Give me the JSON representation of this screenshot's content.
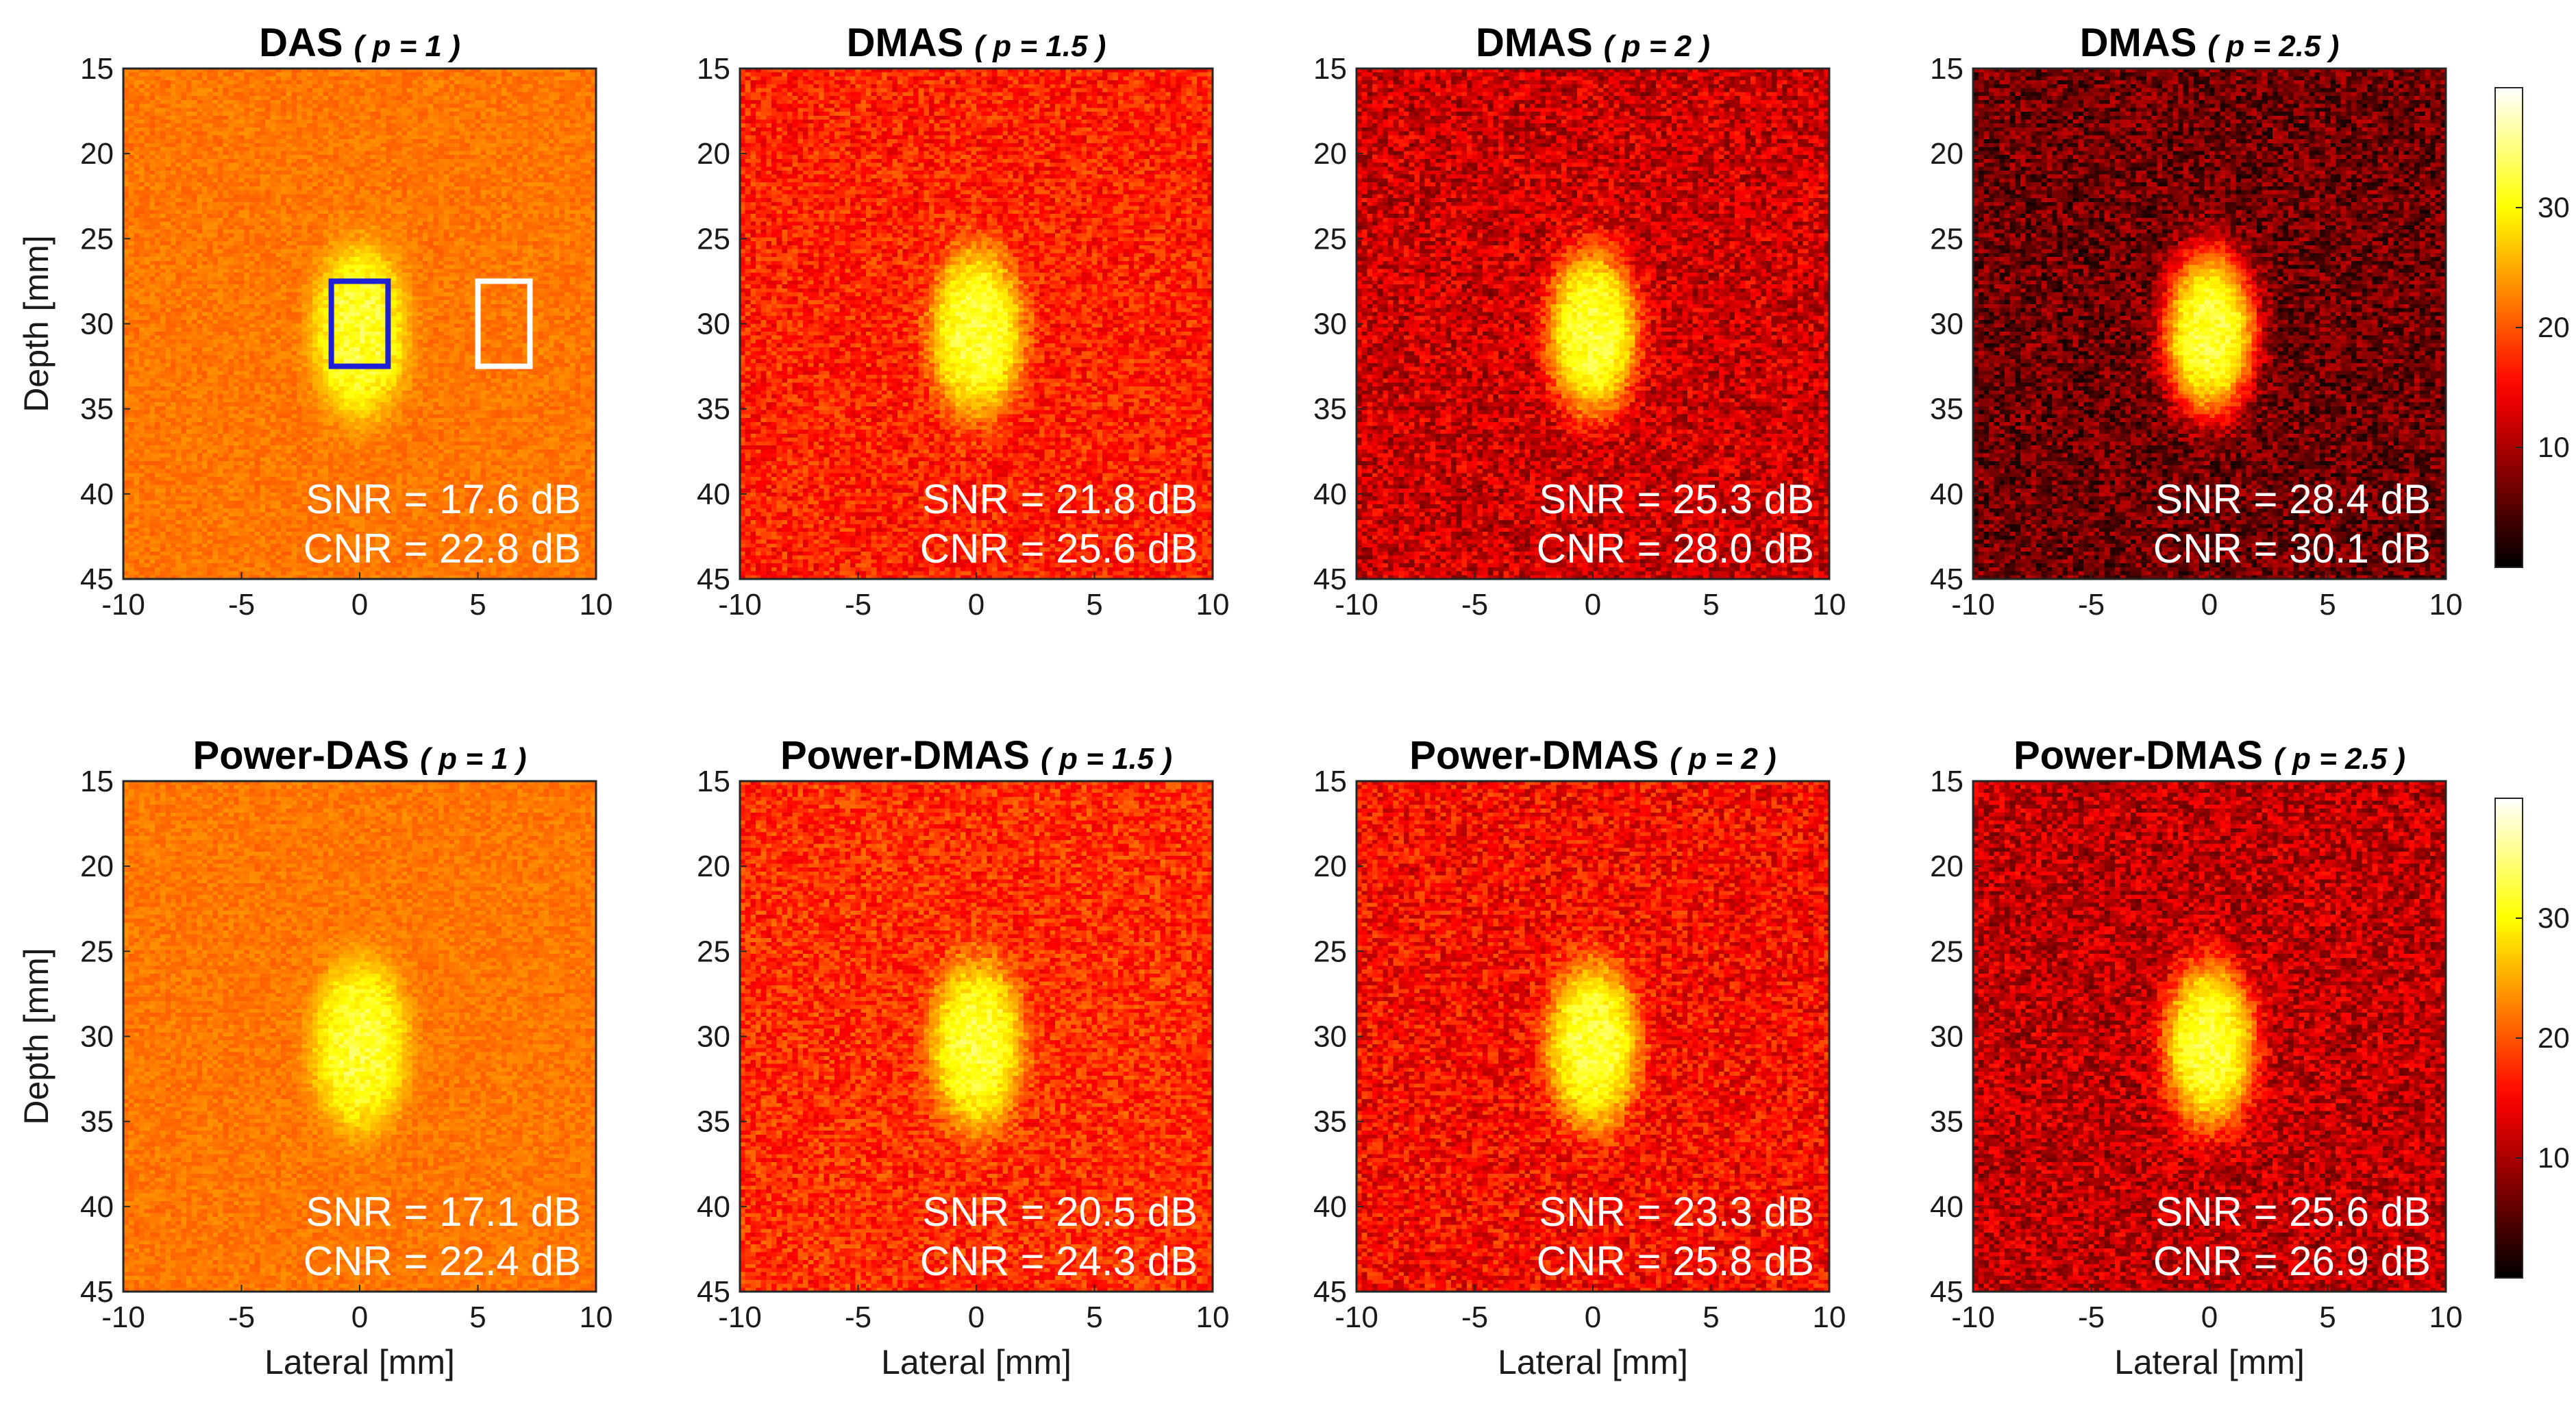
{
  "figure": {
    "colormap": "hot",
    "colors": {
      "background": "#ffffff",
      "axis": "#262626",
      "metric_text": "#ffffff",
      "roi_signal": "#1f1fd6",
      "roi_background": "#ffffff"
    }
  },
  "chart_data": [
    {
      "type": "heatmap",
      "title": "DAS",
      "param": "( p = 1 )",
      "xlabel": "",
      "ylabel": "Depth [mm]",
      "xlim": [
        -10,
        10
      ],
      "ylim": [
        15,
        45
      ],
      "xticks": [
        "-10",
        "-5",
        "0",
        "5",
        "10"
      ],
      "yticks": [
        "15",
        "20",
        "25",
        "30",
        "35",
        "40",
        "45"
      ],
      "background_level": 0.55,
      "noise": 0.04,
      "inclusion": {
        "center_x": 0,
        "center_y": 30.5,
        "radius_x": 2.0,
        "radius_y": 5.0
      },
      "snr": "SNR = 17.6 dB",
      "cnr": "CNR = 22.8 dB",
      "rois": [
        {
          "name": "signal",
          "color": "#1f1fd6",
          "x": [
            -1.2,
            1.2
          ],
          "y": [
            27.5,
            32.5
          ]
        },
        {
          "name": "background",
          "color": "#ffffff",
          "x": [
            5.0,
            7.2
          ],
          "y": [
            27.5,
            32.5
          ]
        }
      ]
    },
    {
      "type": "heatmap",
      "title": "DMAS",
      "param": "( p = 1.5 )",
      "xlabel": "",
      "ylabel": "",
      "xlim": [
        -10,
        10
      ],
      "ylim": [
        15,
        45
      ],
      "xticks": [
        "-10",
        "-5",
        "0",
        "5",
        "10"
      ],
      "yticks": [
        "15",
        "20",
        "25",
        "30",
        "35",
        "40",
        "45"
      ],
      "background_level": 0.42,
      "noise": 0.1,
      "inclusion": {
        "center_x": 0,
        "center_y": 30.5,
        "radius_x": 2.0,
        "radius_y": 5.0
      },
      "snr": "SNR = 21.8 dB",
      "cnr": "CNR = 25.6 dB",
      "rois": []
    },
    {
      "type": "heatmap",
      "title": "DMAS",
      "param": "( p = 2 )",
      "xlabel": "",
      "ylabel": "",
      "xlim": [
        -10,
        10
      ],
      "ylim": [
        15,
        45
      ],
      "xticks": [
        "-10",
        "-5",
        "0",
        "5",
        "10"
      ],
      "yticks": [
        "15",
        "20",
        "25",
        "30",
        "35",
        "40",
        "45"
      ],
      "background_level": 0.3,
      "noise": 0.13,
      "inclusion": {
        "center_x": 0,
        "center_y": 30.5,
        "radius_x": 2.0,
        "radius_y": 5.0
      },
      "snr": "SNR = 25.3 dB",
      "cnr": "CNR = 28.0 dB",
      "rois": []
    },
    {
      "type": "heatmap",
      "title": "DMAS",
      "param": "( p = 2.5 )",
      "xlabel": "",
      "ylabel": "",
      "xlim": [
        -10,
        10
      ],
      "ylim": [
        15,
        45
      ],
      "xticks": [
        "-10",
        "-5",
        "0",
        "5",
        "10"
      ],
      "yticks": [
        "15",
        "20",
        "25",
        "30",
        "35",
        "40",
        "45"
      ],
      "background_level": 0.16,
      "noise": 0.13,
      "inclusion": {
        "center_x": 0,
        "center_y": 30.5,
        "radius_x": 2.0,
        "radius_y": 5.0
      },
      "snr": "SNR = 28.4 dB",
      "cnr": "CNR = 30.1 dB",
      "rois": []
    },
    {
      "type": "heatmap",
      "title": "Power-DAS",
      "param": "( p = 1 )",
      "xlabel": "Lateral [mm]",
      "ylabel": "Depth [mm]",
      "xlim": [
        -10,
        10
      ],
      "ylim": [
        15,
        45
      ],
      "xticks": [
        "-10",
        "-5",
        "0",
        "5",
        "10"
      ],
      "yticks": [
        "15",
        "20",
        "25",
        "30",
        "35",
        "40",
        "45"
      ],
      "background_level": 0.55,
      "noise": 0.04,
      "inclusion": {
        "center_x": 0,
        "center_y": 30.5,
        "radius_x": 2.0,
        "radius_y": 5.0
      },
      "snr": "SNR = 17.1 dB",
      "cnr": "CNR = 22.4 dB",
      "rois": []
    },
    {
      "type": "heatmap",
      "title": "Power-DMAS",
      "param": "( p = 1.5 )",
      "xlabel": "Lateral [mm]",
      "ylabel": "",
      "xlim": [
        -10,
        10
      ],
      "ylim": [
        15,
        45
      ],
      "xticks": [
        "-10",
        "-5",
        "0",
        "5",
        "10"
      ],
      "yticks": [
        "15",
        "20",
        "25",
        "30",
        "35",
        "40",
        "45"
      ],
      "background_level": 0.44,
      "noise": 0.1,
      "inclusion": {
        "center_x": 0,
        "center_y": 30.5,
        "radius_x": 2.0,
        "radius_y": 5.0
      },
      "snr": "SNR = 20.5 dB",
      "cnr": "CNR = 24.3 dB",
      "rois": []
    },
    {
      "type": "heatmap",
      "title": "Power-DMAS",
      "param": "( p = 2 )",
      "xlabel": "Lateral [mm]",
      "ylabel": "",
      "xlim": [
        -10,
        10
      ],
      "ylim": [
        15,
        45
      ],
      "xticks": [
        "-10",
        "-5",
        "0",
        "5",
        "10"
      ],
      "yticks": [
        "15",
        "20",
        "25",
        "30",
        "35",
        "40",
        "45"
      ],
      "background_level": 0.38,
      "noise": 0.12,
      "inclusion": {
        "center_x": 0,
        "center_y": 30.5,
        "radius_x": 2.0,
        "radius_y": 5.0
      },
      "snr": "SNR = 23.3 dB",
      "cnr": "CNR = 25.8 dB",
      "rois": []
    },
    {
      "type": "heatmap",
      "title": "Power-DMAS",
      "param": "( p = 2.5 )",
      "xlabel": "Lateral [mm]",
      "ylabel": "",
      "xlim": [
        -10,
        10
      ],
      "ylim": [
        15,
        45
      ],
      "xticks": [
        "-10",
        "-5",
        "0",
        "5",
        "10"
      ],
      "yticks": [
        "15",
        "20",
        "25",
        "30",
        "35",
        "40",
        "45"
      ],
      "background_level": 0.28,
      "noise": 0.13,
      "inclusion": {
        "center_x": 0,
        "center_y": 30.5,
        "radius_x": 2.0,
        "radius_y": 5.0
      },
      "snr": "SNR = 25.6 dB",
      "cnr": "CNR = 26.9 dB",
      "rois": []
    }
  ],
  "colorbars": [
    {
      "row": "top",
      "range": [
        0,
        40
      ],
      "ticks": [
        "10",
        "20",
        "30"
      ]
    },
    {
      "row": "bottom",
      "range": [
        0,
        40
      ],
      "ticks": [
        "10",
        "20",
        "30"
      ]
    }
  ]
}
